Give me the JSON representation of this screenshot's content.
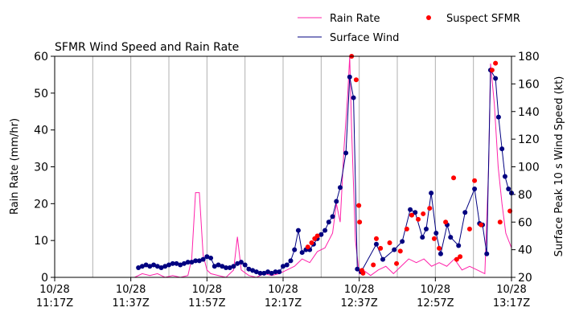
{
  "chart_data": {
    "type": "line",
    "title": "SFMR Wind Speed and Rain Rate",
    "ylabel": "Rain Rate (mm/hr)",
    "y2label": "Surface Peak 10 s Wind Speed (kt)",
    "xlim": [
      677,
      797
    ],
    "xticks": [
      {
        "value": 677,
        "label": "10/28\n11:17Z"
      },
      {
        "value": 697,
        "label": "10/28\n11:37Z"
      },
      {
        "value": 717,
        "label": "10/28\n11:57Z"
      },
      {
        "value": 737,
        "label": "10/28\n12:17Z"
      },
      {
        "value": 757,
        "label": "10/28\n12:37Z"
      },
      {
        "value": 777,
        "label": "10/28\n12:57Z"
      },
      {
        "value": 797,
        "label": "10/28\n13:17Z"
      }
    ],
    "xgrid": [
      687,
      697,
      707,
      717,
      727,
      737,
      747,
      757,
      767,
      777,
      787
    ],
    "ylim": [
      0,
      60
    ],
    "yticks": [
      0,
      10,
      20,
      30,
      40,
      50,
      60
    ],
    "y2lim": [
      20,
      180
    ],
    "y2ticks": [
      20,
      40,
      60,
      80,
      100,
      120,
      140,
      160,
      180
    ],
    "grid": true,
    "legend": "upper right",
    "series": [
      {
        "name": "Rain Rate",
        "color": "#ff22aa",
        "x": [
          698,
          700,
          702,
          704,
          706,
          708,
          710,
          712,
          713,
          714,
          715,
          716,
          717,
          718,
          720,
          722,
          724,
          725,
          726,
          728,
          730,
          732,
          734,
          736,
          738,
          740,
          742,
          744,
          746,
          748,
          750,
          751,
          752,
          753,
          754,
          754.5,
          755,
          756,
          757,
          758,
          760,
          762,
          764,
          766,
          768,
          770,
          772,
          774,
          776,
          778,
          780,
          782,
          784,
          786,
          788,
          790,
          791,
          791.5,
          792.5,
          793.5,
          794.5,
          795.5,
          797
        ],
        "values": [
          0,
          1,
          0.5,
          1,
          0,
          0.5,
          0,
          0.5,
          5,
          23,
          23,
          6,
          2,
          1,
          0.5,
          0,
          2,
          11,
          2,
          0.5,
          0,
          1,
          0.5,
          1,
          2,
          3,
          5,
          4,
          7,
          8,
          12,
          20,
          15,
          35,
          50,
          60,
          40,
          10,
          1,
          2,
          0.5,
          2,
          3,
          1,
          3,
          5,
          4,
          5,
          3,
          4,
          3,
          5,
          2,
          3,
          2,
          1,
          30,
          58,
          47,
          30,
          20,
          12,
          8
        ]
      },
      {
        "name": "Surface Wind",
        "color": "#000080",
        "axis": "y2",
        "marker": "o",
        "x": [
          699,
          700,
          701,
          702,
          703,
          704,
          705,
          706,
          707,
          708,
          709,
          710,
          711,
          712,
          713,
          714,
          715,
          716,
          717,
          718,
          719,
          720,
          721,
          722,
          723,
          724,
          725,
          726,
          727,
          728,
          729,
          730,
          731,
          732,
          733,
          734,
          735,
          736,
          737,
          738,
          739,
          740,
          741,
          742,
          743,
          744,
          745,
          746,
          747,
          748,
          749,
          750,
          751,
          752,
          753.5,
          754.5,
          755.5,
          756.5,
          757.5,
          761.5,
          763.2,
          766.2,
          768.3,
          770.4,
          771.7,
          773.6,
          774.6,
          775.9,
          777.2,
          778.4,
          780.1,
          781,
          783.1,
          784.8,
          787.3,
          788.6,
          789.4,
          790.5,
          791.5,
          792.8,
          793.6,
          794.5,
          795.3,
          796.2,
          797
        ],
        "values": [
          27,
          28,
          29,
          28,
          29,
          28,
          27,
          28,
          29,
          30,
          30,
          29,
          30,
          31,
          31,
          32,
          32,
          33,
          35,
          34,
          28,
          29,
          28,
          27,
          27,
          28,
          30,
          31,
          29,
          26,
          25,
          24,
          23,
          23,
          24,
          23,
          24,
          24,
          28,
          29,
          32,
          40,
          54,
          38,
          40,
          40,
          44,
          48,
          51,
          54,
          60,
          64,
          75,
          85,
          110,
          165,
          150,
          26,
          24,
          44,
          33,
          40,
          46,
          69,
          67,
          49,
          55,
          81,
          52,
          37,
          58,
          49,
          43,
          67,
          84,
          59,
          58,
          37,
          170,
          164,
          136,
          113,
          93,
          84,
          81
        ]
      },
      {
        "name": "Suspect SFMR",
        "color": "#ff0000",
        "axis": "y2",
        "style": "scatter",
        "x": [
          743.5,
          744.5,
          745.3,
          746,
          755,
          756.2,
          756.9,
          757.1,
          757.7,
          758,
          760.7,
          761.5,
          762.6,
          765,
          766.8,
          767.8,
          769.5,
          770.8,
          772.5,
          773.8,
          775.5,
          776.7,
          778,
          779.7,
          781.8,
          782.6,
          783.5,
          786,
          787.3,
          789,
          791.9,
          792.8,
          794,
          796.6
        ],
        "values": [
          42,
          45,
          48,
          50,
          180,
          163,
          72,
          60,
          25,
          23,
          29,
          48,
          41,
          45,
          30,
          39,
          55,
          65,
          62,
          66,
          70,
          48,
          41,
          60,
          92,
          33,
          35,
          55,
          90,
          58,
          170,
          175,
          60,
          68
        ]
      }
    ]
  }
}
